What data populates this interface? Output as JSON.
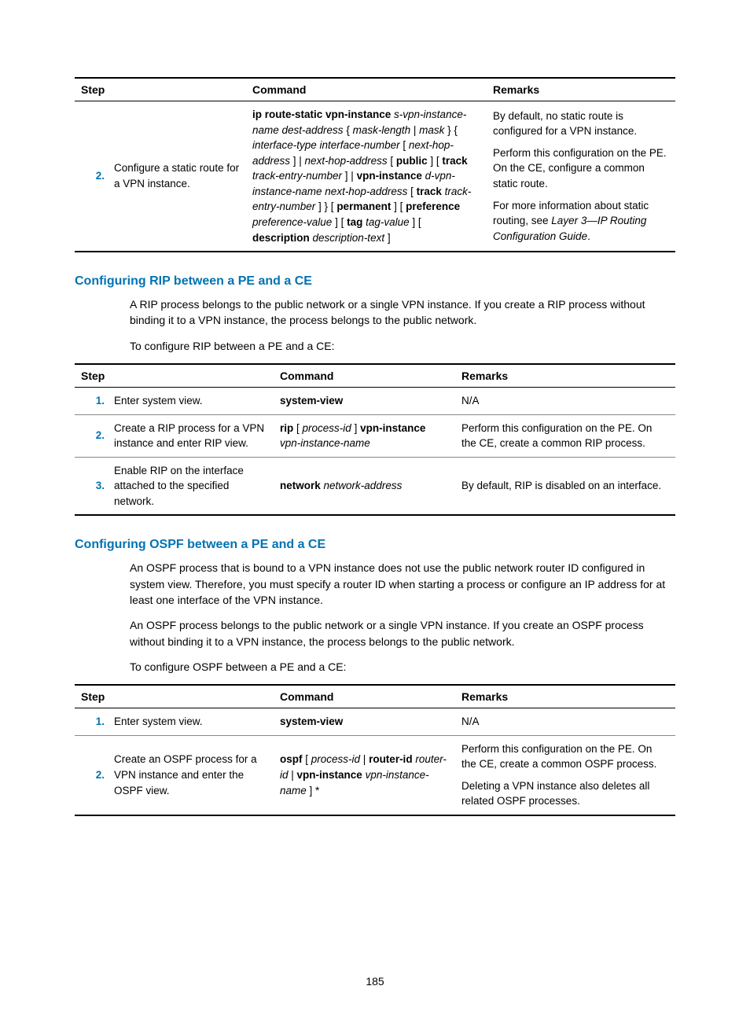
{
  "page_number": "185",
  "table1": {
    "headers": {
      "step": "Step",
      "command": "Command",
      "remarks": "Remarks"
    },
    "rows": [
      {
        "num": "2.",
        "num_color": "blue",
        "step": "Configure a static route for a VPN instance.",
        "command_parts": [
          {
            "t": "ip route-static vpn-instance",
            "b": true
          },
          {
            "t": " ",
            "b": false
          },
          {
            "t": "s-vpn-instance-name dest-address",
            "i": true
          },
          {
            "t": " { ",
            "b": false
          },
          {
            "t": "mask-length",
            "i": true
          },
          {
            "t": " | ",
            "b": false
          },
          {
            "t": "mask",
            "i": true
          },
          {
            "t": " } { ",
            "b": false
          },
          {
            "t": "interface-type interface-number",
            "i": true
          },
          {
            "t": " [ ",
            "b": false
          },
          {
            "t": "next-hop-address",
            "i": true
          },
          {
            "t": " ] | ",
            "b": false
          },
          {
            "t": "next-hop-address",
            "i": true
          },
          {
            "t": " [ ",
            "b": false
          },
          {
            "t": "public",
            "b": true
          },
          {
            "t": " ] [ ",
            "b": false
          },
          {
            "t": "track",
            "b": true
          },
          {
            "t": " ",
            "b": false
          },
          {
            "t": "track-entry-number",
            "i": true
          },
          {
            "t": " ] | ",
            "b": false
          },
          {
            "t": "vpn-instance",
            "b": true
          },
          {
            "t": " ",
            "b": false
          },
          {
            "t": "d-vpn-instance-name next-hop-address",
            "i": true
          },
          {
            "t": " [ ",
            "b": false
          },
          {
            "t": "track",
            "b": true
          },
          {
            "t": " ",
            "b": false
          },
          {
            "t": "track-entry-number",
            "i": true
          },
          {
            "t": " ] } [ ",
            "b": false
          },
          {
            "t": "permanent",
            "b": true
          },
          {
            "t": " ] [ ",
            "b": false
          },
          {
            "t": "preference",
            "b": true
          },
          {
            "t": " ",
            "b": false
          },
          {
            "t": "preference-value",
            "i": true
          },
          {
            "t": " ] [ ",
            "b": false
          },
          {
            "t": "tag",
            "b": true
          },
          {
            "t": " ",
            "b": false
          },
          {
            "t": "tag-value",
            "i": true
          },
          {
            "t": " ] [ ",
            "b": false
          },
          {
            "t": "description",
            "b": true
          },
          {
            "t": " ",
            "b": false
          },
          {
            "t": "description-text",
            "i": true
          },
          {
            "t": " ]",
            "b": false
          }
        ],
        "remarks": [
          "By default, no static route is configured for a VPN instance.",
          "Perform this configuration on the PE. On the CE, configure a common static route.",
          "For more information about static routing, see <i>Layer 3—IP Routing Configuration Guide</i>."
        ]
      }
    ]
  },
  "section_rip": {
    "heading": "Configuring RIP between a PE and a CE",
    "p1": "A RIP process belongs to the public network or a single VPN instance. If you create a RIP process without binding it to a VPN instance, the process belongs to the public network.",
    "p2": "To configure RIP between a PE and a CE:"
  },
  "table2": {
    "headers": {
      "step": "Step",
      "command": "Command",
      "remarks": "Remarks"
    },
    "rows": [
      {
        "num": "1.",
        "num_color": "blue",
        "step": "Enter system view.",
        "command_parts": [
          {
            "t": "system-view",
            "b": true
          }
        ],
        "remarks": [
          "N/A"
        ]
      },
      {
        "num": "2.",
        "num_color": "blue",
        "step": "Create a RIP process for a VPN instance and enter RIP view.",
        "command_parts": [
          {
            "t": "rip",
            "b": true
          },
          {
            "t": " [ ",
            "b": false
          },
          {
            "t": "process-id",
            "i": true
          },
          {
            "t": " ] ",
            "b": false
          },
          {
            "t": "vpn-instance",
            "b": true
          },
          {
            "t": " ",
            "b": false
          },
          {
            "t": "vpn-instance-name",
            "i": true
          }
        ],
        "remarks": [
          "Perform this configuration on the PE. On the CE, create a common RIP process."
        ]
      },
      {
        "num": "3.",
        "num_color": "blue",
        "step": "Enable RIP on the interface attached to the specified network.",
        "command_parts": [
          {
            "t": "network",
            "b": true
          },
          {
            "t": " ",
            "b": false
          },
          {
            "t": "network-address",
            "i": true
          }
        ],
        "remarks": [
          "By default, RIP is disabled on an interface."
        ]
      }
    ]
  },
  "section_ospf": {
    "heading": "Configuring OSPF between a PE and a CE",
    "p1": "An OSPF process that is bound to a VPN instance does not use the public network router ID configured in system view. Therefore, you must specify a router ID when starting a process or configure an IP address for at least one interface of the VPN instance.",
    "p2": "An OSPF process belongs to the public network or a single VPN instance. If you create an OSPF process without binding it to a VPN instance, the process belongs to the public network.",
    "p3": "To configure OSPF between a PE and a CE:"
  },
  "table3": {
    "headers": {
      "step": "Step",
      "command": "Command",
      "remarks": "Remarks"
    },
    "rows": [
      {
        "num": "1.",
        "num_color": "blue",
        "step": "Enter system view.",
        "command_parts": [
          {
            "t": "system-view",
            "b": true
          }
        ],
        "remarks": [
          "N/A"
        ]
      },
      {
        "num": "2.",
        "num_color": "blue",
        "step": "Create an OSPF process for a VPN instance and enter the OSPF view.",
        "command_parts": [
          {
            "t": "ospf",
            "b": true
          },
          {
            "t": " [ ",
            "b": false
          },
          {
            "t": "process-id",
            "i": true
          },
          {
            "t": " | ",
            "b": false
          },
          {
            "t": "router-id",
            "b": true
          },
          {
            "t": " ",
            "b": false
          },
          {
            "t": "router-id",
            "i": true
          },
          {
            "t": " | ",
            "b": false
          },
          {
            "t": "vpn-instance",
            "b": true
          },
          {
            "t": " ",
            "b": false
          },
          {
            "t": "vpn-instance-name",
            "i": true
          },
          {
            "t": " ] *",
            "b": false
          }
        ],
        "remarks": [
          "Perform this configuration on the PE. On the CE, create a common OSPF process.",
          "Deleting a VPN instance also deletes all related OSPF processes."
        ]
      }
    ]
  }
}
